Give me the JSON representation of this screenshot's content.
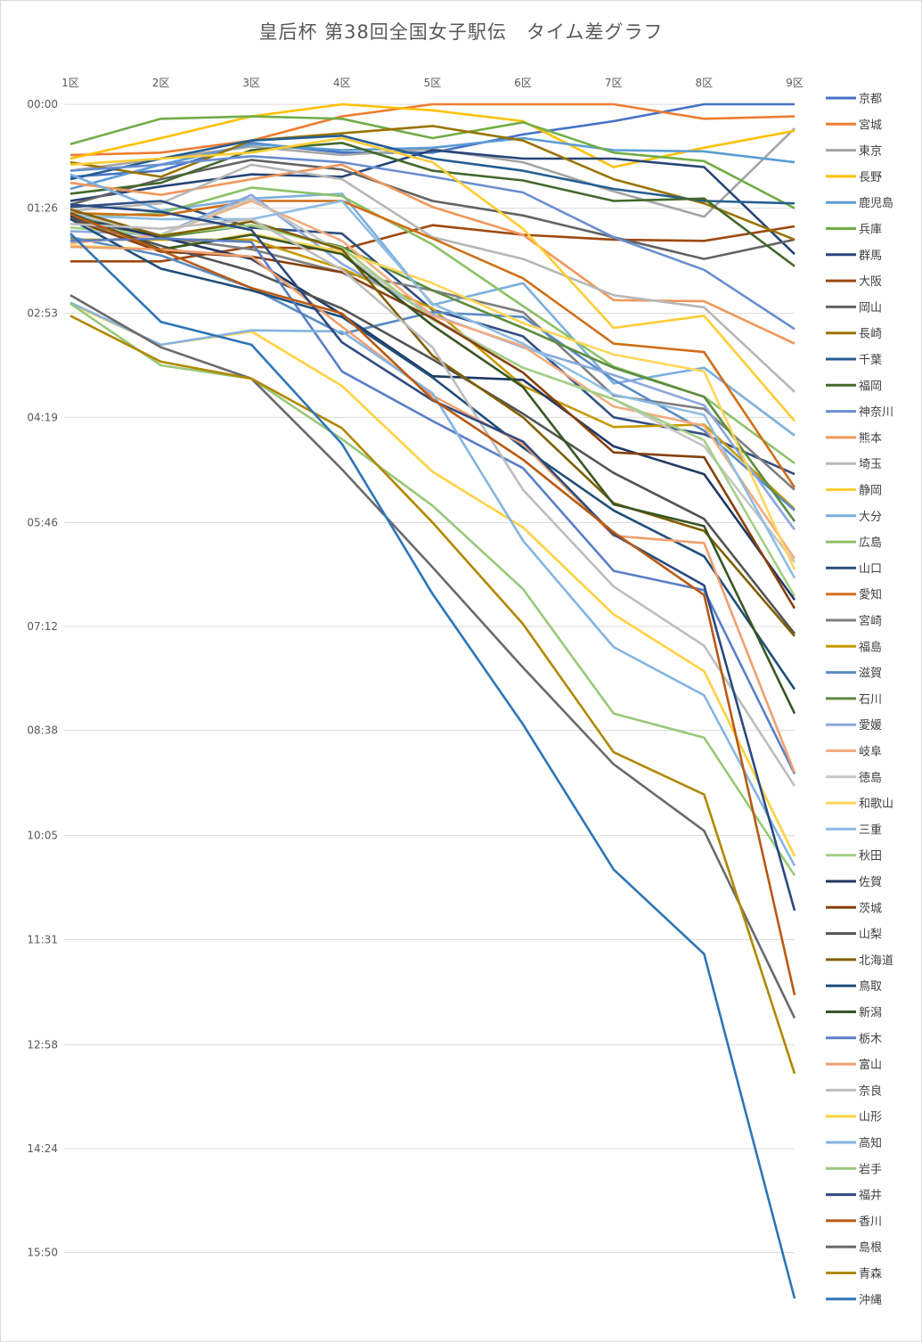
{
  "chart_data": {
    "type": "line",
    "title": "皇后杯 第38回全国女子駅伝　タイム差グラフ",
    "categories": [
      "1区",
      "2区",
      "3区",
      "4区",
      "5区",
      "6区",
      "7区",
      "8区",
      "9区"
    ],
    "y_ticks": [
      "00:00",
      "01:26",
      "02:53",
      "04:19",
      "05:46",
      "07:12",
      "08:38",
      "10:05",
      "11:31",
      "12:58",
      "14:24",
      "15:50"
    ],
    "y_unit": "seconds behind leader",
    "y_range": [
      0,
      1000
    ],
    "y_reversed": true,
    "x_axis_position": "top",
    "grid": true,
    "legend": "right",
    "series": [
      {
        "name": "京都",
        "color": "#4472c4",
        "values": [
          60,
          55,
          32,
          40,
          40,
          25,
          14,
          0,
          0
        ]
      },
      {
        "name": "宮城",
        "color": "#ed7d31",
        "values": [
          42,
          40,
          30,
          10,
          0,
          0,
          0,
          12,
          10
        ]
      },
      {
        "name": "東京",
        "color": "#a5a5a5",
        "values": [
          55,
          45,
          35,
          42,
          37,
          48,
          72,
          93,
          20
        ]
      },
      {
        "name": "長野",
        "color": "#ffc000",
        "values": [
          45,
          28,
          10,
          0,
          5,
          14,
          52,
          36,
          22
        ]
      },
      {
        "name": "鹿児島",
        "color": "#5b9bd5",
        "values": [
          70,
          50,
          33,
          38,
          36,
          28,
          38,
          39,
          48
        ]
      },
      {
        "name": "兵庫",
        "color": "#70ad47",
        "values": [
          33,
          12,
          10,
          12,
          28,
          15,
          40,
          47,
          86
        ]
      },
      {
        "name": "群馬",
        "color": "#264478",
        "values": [
          80,
          68,
          58,
          60,
          38,
          45,
          45,
          52,
          124
        ]
      },
      {
        "name": "大阪",
        "color": "#9e480e",
        "values": [
          130,
          130,
          118,
          120,
          100,
          108,
          112,
          113,
          101
        ]
      },
      {
        "name": "岡山",
        "color": "#636363",
        "values": [
          83,
          62,
          46,
          54,
          80,
          92,
          110,
          128,
          112
        ]
      },
      {
        "name": "長崎",
        "color": "#997300",
        "values": [
          48,
          60,
          30,
          24,
          18,
          30,
          62,
          82,
          112
        ]
      },
      {
        "name": "千葉",
        "color": "#255e91",
        "values": [
          62,
          45,
          30,
          26,
          45,
          55,
          70,
          80,
          82
        ]
      },
      {
        "name": "福岡",
        "color": "#43682b",
        "values": [
          74,
          65,
          38,
          32,
          55,
          63,
          80,
          78,
          134
        ]
      },
      {
        "name": "神奈川",
        "color": "#698ed0",
        "values": [
          55,
          50,
          43,
          48,
          60,
          73,
          110,
          137,
          186
        ]
      },
      {
        "name": "熊本",
        "color": "#f1975a",
        "values": [
          65,
          75,
          62,
          50,
          85,
          108,
          162,
          163,
          198
        ]
      },
      {
        "name": "埼玉",
        "color": "#b7b7b7",
        "values": [
          88,
          82,
          50,
          62,
          110,
          128,
          158,
          168,
          238
        ]
      },
      {
        "name": "静岡",
        "color": "#ffcd33",
        "values": [
          50,
          45,
          40,
          28,
          48,
          103,
          185,
          175,
          262
        ]
      },
      {
        "name": "大分",
        "color": "#7cafdd",
        "values": [
          58,
          88,
          78,
          74,
          166,
          148,
          231,
          218,
          274
        ]
      },
      {
        "name": "広島",
        "color": "#8cc168",
        "values": [
          94,
          90,
          69,
          76,
          116,
          167,
          217,
          242,
          297
        ]
      },
      {
        "name": "山口",
        "color": "#314f82",
        "values": [
          85,
          80,
          102,
          107,
          170,
          192,
          259,
          273,
          306
        ]
      },
      {
        "name": "愛知",
        "color": "#d06f18",
        "values": [
          90,
          92,
          80,
          80,
          111,
          144,
          198,
          205,
          317
        ]
      },
      {
        "name": "宮崎",
        "color": "#7f7f7f",
        "values": [
          95,
          110,
          120,
          139,
          154,
          172,
          241,
          252,
          319
        ]
      },
      {
        "name": "福島",
        "color": "#c59a00",
        "values": [
          112,
          112,
          112,
          136,
          169,
          233,
          267,
          265,
          335
        ]
      },
      {
        "name": "滋賀",
        "color": "#5a8cc4",
        "values": [
          110,
          125,
          152,
          190,
          172,
          176,
          228,
          270,
          336
        ]
      },
      {
        "name": "石川",
        "color": "#5d8c3e",
        "values": [
          90,
          110,
          100,
          118,
          154,
          185,
          218,
          242,
          345
        ]
      },
      {
        "name": "愛媛",
        "color": "#8aa8de",
        "values": [
          105,
          108,
          75,
          132,
          174,
          201,
          224,
          249,
          352
        ]
      },
      {
        "name": "岐阜",
        "color": "#f3ab7e",
        "values": [
          115,
          108,
          80,
          113,
          175,
          200,
          250,
          266,
          376
        ]
      },
      {
        "name": "徳島",
        "color": "#c6c6c6",
        "values": [
          90,
          108,
          78,
          123,
          177,
          218,
          244,
          283,
          379
        ]
      },
      {
        "name": "和歌山",
        "color": "#ffd55a",
        "values": [
          117,
          120,
          107,
          122,
          148,
          181,
          207,
          221,
          385
        ]
      },
      {
        "name": "三重",
        "color": "#8fbde2",
        "values": [
          92,
          95,
          95,
          80,
          165,
          198,
          240,
          257,
          392
        ]
      },
      {
        "name": "秋田",
        "color": "#a4cf86",
        "values": [
          102,
          108,
          100,
          119,
          178,
          218,
          244,
          278,
          407
        ]
      },
      {
        "name": "佐賀",
        "color": "#203864",
        "values": [
          93,
          110,
          128,
          174,
          225,
          228,
          283,
          306,
          410
        ]
      },
      {
        "name": "茨城",
        "color": "#86400c",
        "values": [
          95,
          122,
          126,
          139,
          177,
          222,
          288,
          292,
          417
        ]
      },
      {
        "name": "山梨",
        "color": "#545454",
        "values": [
          94,
          117,
          138,
          169,
          211,
          256,
          305,
          343,
          438
        ]
      },
      {
        "name": "北海道",
        "color": "#7f6000",
        "values": [
          87,
          109,
          97,
          120,
          208,
          259,
          330,
          353,
          440
        ]
      },
      {
        "name": "鳥取",
        "color": "#1f4e79",
        "values": [
          95,
          136,
          154,
          176,
          226,
          284,
          336,
          374,
          484
        ]
      },
      {
        "name": "新潟",
        "color": "#375623",
        "values": [
          90,
          120,
          108,
          124,
          183,
          234,
          331,
          349,
          504
        ]
      },
      {
        "name": "栃木",
        "color": "#5a7fc7",
        "values": [
          113,
          111,
          114,
          221,
          262,
          301,
          386,
          402,
          554
        ]
      },
      {
        "name": "富山",
        "color": "#f0a06f",
        "values": [
          118,
          120,
          126,
          184,
          241,
          281,
          357,
          363,
          553
        ]
      },
      {
        "name": "奈良",
        "color": "#bdbdbd",
        "values": [
          99,
          103,
          95,
          137,
          201,
          319,
          399,
          448,
          564
        ]
      },
      {
        "name": "山形",
        "color": "#ffd13f",
        "values": [
          165,
          199,
          188,
          233,
          304,
          350,
          422,
          469,
          622
        ]
      },
      {
        "name": "高知",
        "color": "#85b5e0",
        "values": [
          164,
          199,
          187,
          188,
          239,
          361,
          449,
          489,
          630
        ]
      },
      {
        "name": "岩手",
        "color": "#99c879",
        "values": [
          165,
          216,
          227,
          277,
          332,
          401,
          504,
          524,
          638
        ]
      },
      {
        "name": "福井",
        "color": "#2b4a7f",
        "values": [
          83,
          89,
          104,
          197,
          245,
          279,
          356,
          398,
          667
        ]
      },
      {
        "name": "香川",
        "color": "#b85a14",
        "values": [
          91,
          121,
          152,
          173,
          244,
          294,
          354,
          406,
          737
        ]
      },
      {
        "name": "島根",
        "color": "#6a6a6a",
        "values": [
          158,
          201,
          227,
          302,
          383,
          466,
          546,
          601,
          756
        ]
      },
      {
        "name": "青森",
        "color": "#b08800",
        "values": [
          175,
          213,
          227,
          268,
          346,
          430,
          536,
          571,
          802
        ]
      },
      {
        "name": "沖縄",
        "color": "#2e75b6",
        "values": [
          107,
          180,
          199,
          281,
          405,
          513,
          633,
          703,
          988
        ]
      }
    ]
  }
}
